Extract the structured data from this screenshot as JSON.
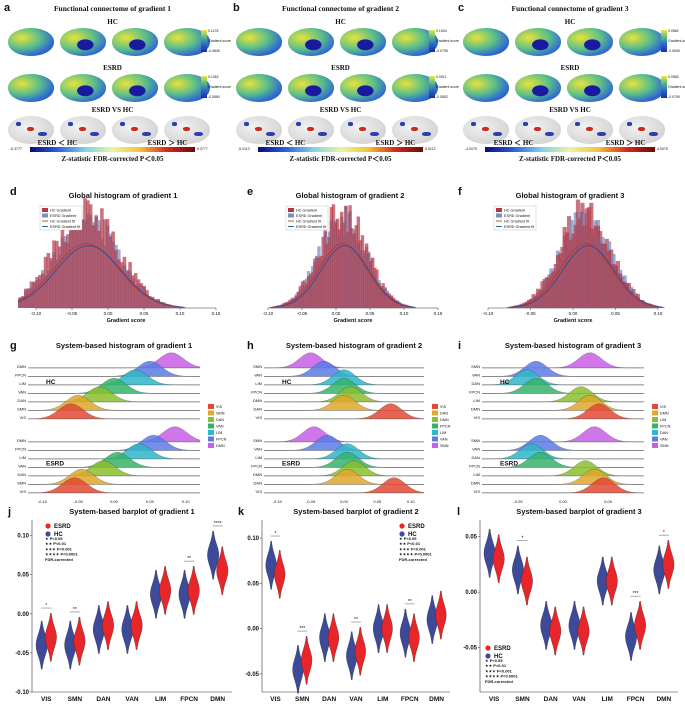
{
  "panel_labels": [
    "a",
    "b",
    "c",
    "d",
    "e",
    "f",
    "g",
    "h",
    "i",
    "j",
    "k",
    "l"
  ],
  "brain_panels": [
    {
      "title": "Functional connectome of gradient 1",
      "hc": "HC",
      "esrd": "ESRD",
      "vs": "ESRD VS HC",
      "hc_scale": [
        "0.1178",
        "-0.0830"
      ],
      "esrd_scale": [
        "0.1062",
        "-0.0884"
      ],
      "scale_title": "Gradient score",
      "zmin": "-5.3777",
      "zmax": "5.3777",
      "lt": "ESRD ＜ HC",
      "gt": "ESRD ＞ HC",
      "stat": "Z-statistic FDR-corrected P＜0.05"
    },
    {
      "title": "Functional connectome of gradient 2",
      "hc": "HC",
      "esrd": "ESRD",
      "vs": "ESRD VS HC",
      "hc_scale": [
        "0.1004",
        "-0.0755"
      ],
      "esrd_scale": [
        "0.0911",
        "-0.0852"
      ],
      "scale_title": "Gradient score",
      "zmin": "-5.0113",
      "zmax": "5.0113",
      "lt": "ESRD ＜ HC",
      "gt": "ESRD ＞ HC",
      "stat": "Z-statistic FDR-corrected P＜0.05"
    },
    {
      "title": "Functional connectome of gradient 3",
      "hc": "HC",
      "esrd": "ESRD",
      "vs": "ESRD VS HC",
      "hc_scale": [
        "0.0582",
        "-0.0690"
      ],
      "esrd_scale": [
        "0.0580",
        "-0.0790"
      ],
      "scale_title": "Gradient score",
      "zmin": "-4.0075",
      "zmax": "4.0075",
      "lt": "ESRD ＜ HC",
      "gt": "ESRD ＞ HC",
      "stat": "Z-statistic FDR-corrected P＜0.05"
    }
  ],
  "colors": {
    "hc_bar": "#b23a48",
    "esrd_bar": "#7f8fbf",
    "hc_line": "#c0392b",
    "esrd_line": "#2c4fa0",
    "violin_esrd": "#e8262a",
    "violin_hc": "#3d4a9a"
  },
  "chart_data": [
    {
      "type": "bar",
      "title": "Global histogram of gradient 1",
      "xlabel": "Gradient score",
      "xticks": [
        "-0.10",
        "-0.05",
        "0.00",
        "0.05",
        "0.10",
        "0.15"
      ],
      "xlim": [
        -0.1,
        0.15
      ],
      "legend": [
        "HC Gradient",
        "ESRD Gradient",
        "HC Gradient fit",
        "ESRD Gradient fit"
      ],
      "mode": -0.03,
      "spread": 0.045
    },
    {
      "type": "bar",
      "title": "Global histogram of gradient 2",
      "xlabel": "Gradient score",
      "xticks": [
        "-0.10",
        "-0.05",
        "0.00",
        "0.05",
        "0.10",
        "0.15"
      ],
      "xlim": [
        -0.1,
        0.15
      ],
      "legend": [
        "HC Gradient",
        "ESRD Gradient",
        "HC Gradient fit",
        "ESRD Gradient fit"
      ],
      "mode": 0.01,
      "spread": 0.035
    },
    {
      "type": "bar",
      "title": "Global histogram of gradient 3",
      "xlabel": "Gradient score",
      "xticks": [
        "-0.10",
        "-0.05",
        "0.00",
        "0.05",
        "0.10"
      ],
      "xlim": [
        -0.1,
        0.1
      ],
      "legend": [
        "HC Gradient",
        "ESRD Gradient",
        "HC Gradient fit",
        "ESRD Gradient fit"
      ],
      "mode": 0.015,
      "spread": 0.03
    },
    {
      "type": "area",
      "title": "System-based histogram of gradient 1",
      "xticks": [
        "-0.10",
        "-0.05",
        "0.00",
        "0.05",
        "0.10"
      ],
      "xlim": [
        -0.12,
        0.12
      ],
      "group_top": "HC",
      "group_bottom": "ESRD",
      "rows": [
        "DMN",
        "FPCN",
        "LIM",
        "VAN",
        "DAN",
        "SMN",
        "VIS"
      ],
      "peaks": [
        0.08,
        0.05,
        0.03,
        0.0,
        -0.02,
        -0.05,
        -0.06
      ],
      "legend": [
        "VIS",
        "SMN",
        "DAN",
        "VAN",
        "LIM",
        "FPCN",
        "DMN"
      ]
    },
    {
      "type": "area",
      "title": "System-based histogram of gradient 2",
      "xticks": [
        "-0.10",
        "-0.05",
        "0.00",
        "0.05",
        "0.10"
      ],
      "xlim": [
        -0.12,
        0.12
      ],
      "group_top": "HC",
      "group_bottom": "ESRD",
      "rows": [
        "SMN",
        "VAN",
        "LIM",
        "FPCN",
        "DMN",
        "DAN",
        "VIS"
      ],
      "peaks": [
        -0.05,
        -0.03,
        0.0,
        0.0,
        0.01,
        0.0,
        0.07
      ],
      "legend": [
        "VIS",
        "DAN",
        "DMN",
        "FPCN",
        "LIM",
        "VAN",
        "SMN"
      ]
    },
    {
      "type": "area",
      "title": "System-based histogram of gradient 3",
      "xticks": [
        "-0.05",
        "0.00",
        "0.05"
      ],
      "xlim": [
        -0.09,
        0.09
      ],
      "group_top": "HC",
      "group_bottom": "ESRD",
      "rows": [
        "SMN",
        "VAN",
        "DAN",
        "FPCN",
        "LIM",
        "DMN",
        "VIS"
      ],
      "peaks": [
        0.03,
        -0.03,
        -0.04,
        -0.03,
        0.02,
        0.03,
        0.04
      ],
      "legend": [
        "VIS",
        "DMN",
        "LIM",
        "FPCN",
        "DAN",
        "VAN",
        "SMN"
      ]
    },
    {
      "type": "scatter",
      "title": "System-based barplot of gradient 1",
      "categories": [
        "VIS",
        "SMN",
        "DAN",
        "VAN",
        "LIM",
        "FPCN",
        "DMN"
      ],
      "yticks": [
        "0.10",
        "0.05",
        "0.00",
        "-0.05",
        "-0.10"
      ],
      "ylim": [
        -0.1,
        0.12
      ],
      "hc": [
        -0.04,
        -0.04,
        -0.02,
        -0.02,
        0.025,
        0.025,
        0.075
      ],
      "esrd": [
        -0.03,
        -0.035,
        -0.015,
        -0.015,
        0.03,
        0.03,
        0.055
      ],
      "sig": [
        "*",
        "**",
        "",
        "",
        "",
        "**",
        "****"
      ],
      "legend": [
        "ESRD",
        "HC"
      ],
      "notes": [
        "★ P<0.05",
        "★★ P<0.01",
        "★★★ P<0.001",
        "★★★★ P<0.0001",
        "FDR-corrected"
      ]
    },
    {
      "type": "scatter",
      "title": "System-based barplot of gradient 2",
      "categories": [
        "VIS",
        "SMN",
        "DAN",
        "VAN",
        "LIM",
        "FPCN",
        "DMN"
      ],
      "yticks": [
        "0.10",
        "0.05",
        "0.00",
        "-0.05"
      ],
      "ylim": [
        -0.07,
        0.12
      ],
      "hc": [
        0.07,
        -0.045,
        -0.01,
        -0.03,
        0.0,
        -0.005,
        0.01
      ],
      "esrd": [
        0.06,
        -0.035,
        -0.01,
        -0.025,
        0.0,
        -0.01,
        0.015
      ],
      "sig": [
        "*",
        "***",
        "",
        "**",
        "",
        "**",
        ""
      ],
      "legend": [
        "ESRD",
        "HC"
      ],
      "notes": [
        "★ P<0.05",
        "★★ P<0.01",
        "★★★ P<0.001",
        "★★★★ P<0.0001",
        "FDR-corrected"
      ]
    },
    {
      "type": "scatter",
      "title": "System-based barplot of gradient 3",
      "categories": [
        "VIS",
        "SMN",
        "DAN",
        "VAN",
        "LIM",
        "FPCN",
        "DMN"
      ],
      "yticks": [
        "0.05",
        "0.00",
        "-0.05"
      ],
      "ylim": [
        -0.09,
        0.065
      ],
      "hc": [
        0.035,
        0.02,
        -0.03,
        -0.03,
        0.01,
        -0.04,
        0.02
      ],
      "esrd": [
        0.03,
        0.01,
        -0.035,
        -0.035,
        0.01,
        -0.03,
        0.025
      ],
      "sig": [
        "",
        "*",
        "",
        "",
        "",
        "***",
        "*"
      ],
      "legend": [
        "ESRD",
        "HC"
      ],
      "notes": [
        "★ P<0.05",
        "★★ P<0.01",
        "★★★ P<0.001",
        "★★★★ P<0.0001",
        "FDR-corrected"
      ]
    }
  ]
}
